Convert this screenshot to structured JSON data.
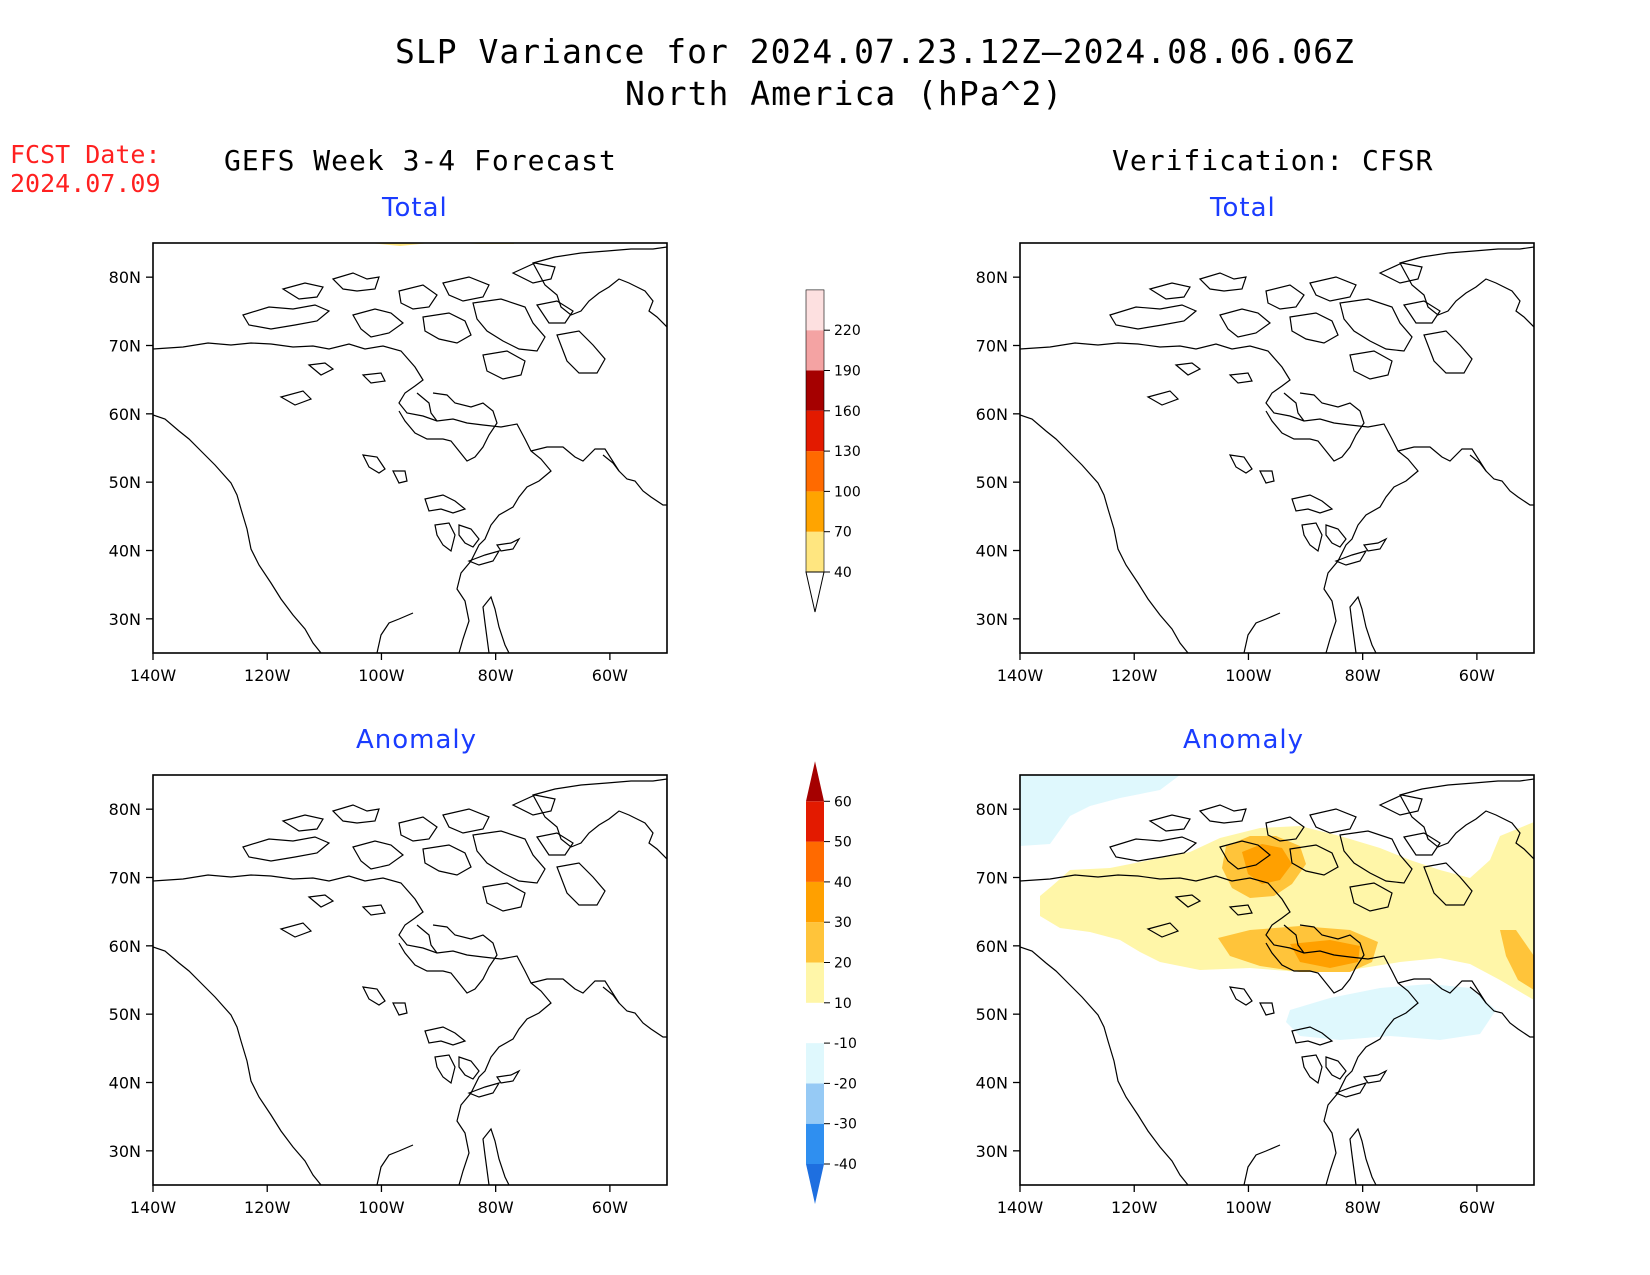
{
  "header": {
    "title_line1": "SLP Variance for 2024.07.23.12Z–2024.08.06.06Z",
    "title_line2": "North America (hPa^2)"
  },
  "fcst": {
    "label": "FCST Date:",
    "date": "2024.07.09"
  },
  "columns": {
    "left": "GEFS Week 3-4 Forecast",
    "right": "Verification: CFSR"
  },
  "panels": [
    {
      "id": "gefs-total",
      "label": "Total"
    },
    {
      "id": "cfsr-total",
      "label": "Total"
    },
    {
      "id": "gefs-anomaly",
      "label": "Anomaly"
    },
    {
      "id": "cfsr-anomaly",
      "label": "Anomaly"
    }
  ],
  "axes": {
    "lon_ticks": [
      "140W",
      "120W",
      "100W",
      "80W",
      "60W"
    ],
    "lat_ticks": [
      "80N",
      "70N",
      "60N",
      "50N",
      "40N",
      "30N"
    ],
    "lon_range": [
      -140,
      -50
    ],
    "lat_range": [
      25,
      85
    ]
  },
  "colorbars": {
    "total": {
      "levels": [
        "40",
        "70",
        "100",
        "130",
        "160",
        "190",
        "220"
      ],
      "colors": [
        "#ffe680",
        "#ffa400",
        "#ff6a00",
        "#e31a00",
        "#a50000",
        "#f4a3a3",
        "#fde0e0"
      ]
    },
    "anomaly": {
      "levels": [
        "-40",
        "-30",
        "-20",
        "-10",
        "10",
        "20",
        "30",
        "40",
        "50",
        "60"
      ],
      "colors": [
        "#1e6fe0",
        "#2f8ff0",
        "#96caf5",
        "#dff8fd",
        "#ffffff",
        "#fff6a8",
        "#ffc43a",
        "#ffa000",
        "#ff6a00",
        "#e31a00",
        "#a50000"
      ]
    }
  }
}
